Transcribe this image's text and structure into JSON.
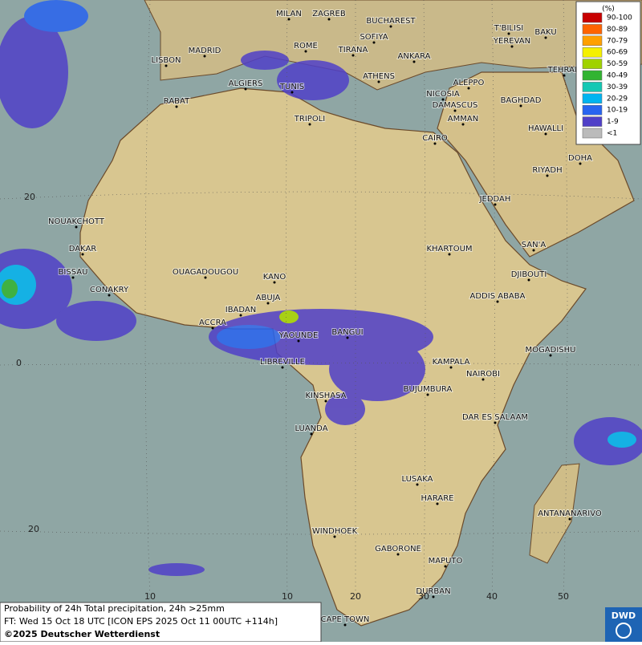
{
  "legend": {
    "title": "(%)",
    "entries": [
      {
        "label": "90-100",
        "color": "#c80000"
      },
      {
        "label": "80-89",
        "color": "#ff6400"
      },
      {
        "label": "70-79",
        "color": "#ffa000"
      },
      {
        "label": "60-69",
        "color": "#f5f000"
      },
      {
        "label": "50-59",
        "color": "#a0d200"
      },
      {
        "label": "40-49",
        "color": "#32b432"
      },
      {
        "label": "30-39",
        "color": "#14c8b4"
      },
      {
        "label": "20-29",
        "color": "#00b4f0"
      },
      {
        "label": "10-19",
        "color": "#2864f0"
      },
      {
        "label": "1-9",
        "color": "#5040c8"
      },
      {
        "label": "<1",
        "color": "#bbbbbb"
      }
    ]
  },
  "cities": [
    "MILAN",
    "ZAGREB",
    "BUCHAREST",
    "T'BILISI",
    "BAKU",
    "MADRID",
    "ROME",
    "SOFIYA",
    "YEREVAN",
    "LISBON",
    "TIRANA",
    "ANKARA",
    "TEHRAN",
    "ALGIERS",
    "TUNIS",
    "ATHENS",
    "ALEPPO",
    "RABAT",
    "NICOSIA",
    "BAGHDAD",
    "DAMASCUS",
    "AMMAN",
    "TRIPOLI",
    "HAWALLI",
    "CAIRO",
    "DOHA",
    "RIYADH",
    "JEDDAH",
    "NOUAKCHOTT",
    "DAKAR",
    "KHARTOUM",
    "SAN'A",
    "BISSAU",
    "OUAGADOUGOU",
    "KANO",
    "DJIBOUTI",
    "CONAKRY",
    "ABUJA",
    "ADDIS ABABA",
    "IBADAN",
    "ACCRA",
    "BANGUI",
    "YAOUNDE",
    "MOGADISHU",
    "LIBREVILLE",
    "KAMPALA",
    "NAIROBI",
    "BUJUMBURA",
    "KINSHASA",
    "DAR ES SALAAM",
    "LUANDA",
    "LUSAKA",
    "HARARE",
    "ANTANANARIVO",
    "WINDHOEK",
    "GABORONE",
    "MAPUTO",
    "DURBAN",
    "CAPE TOWN"
  ],
  "lat_labels": [
    20,
    0,
    20
  ],
  "lon_labels": [
    10,
    10,
    20,
    30,
    40,
    50
  ],
  "caption": {
    "line1": "Probability of 24h Total precipitation, 24h >25mm",
    "line2": "FT: Wed 15 Oct 18 UTC [ICON EPS 2025 Oct 11 00UTC +114h]",
    "line3": "©2025 Deutscher Wetterdienst"
  },
  "logo": "DWD"
}
